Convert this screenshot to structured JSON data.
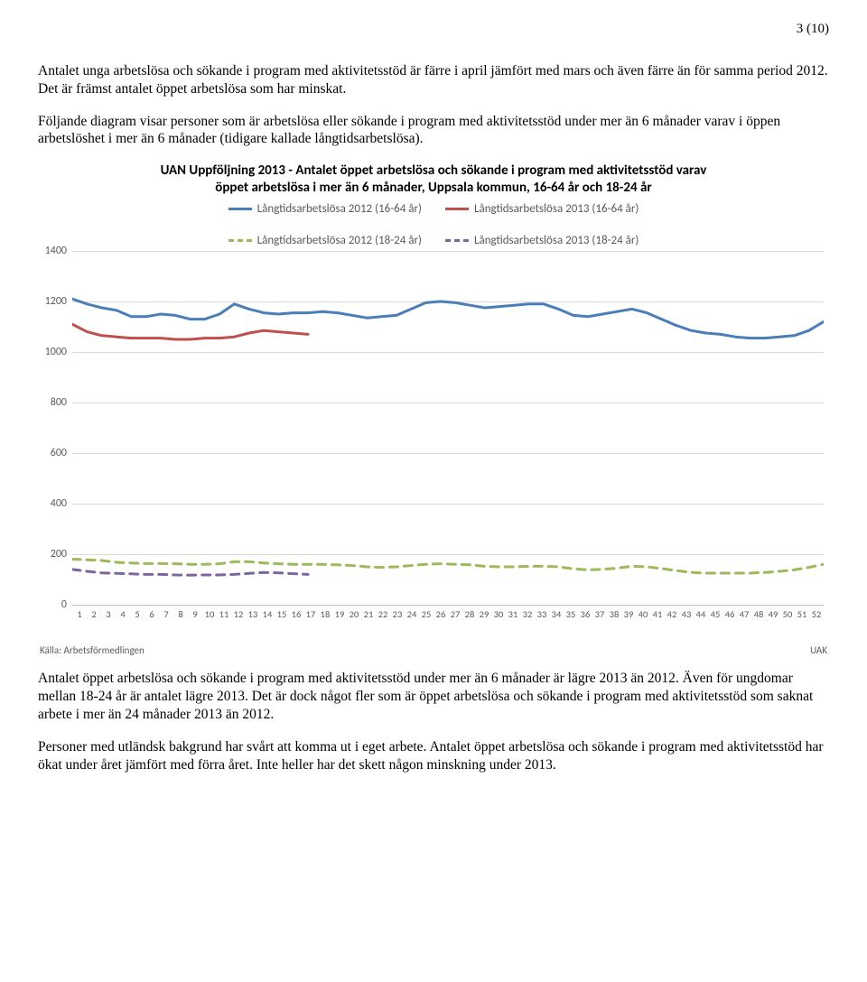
{
  "page_number": "3 (10)",
  "para1": "Antalet unga arbetslösa och sökande i program med aktivitetsstöd är färre i april jämfört med mars och även färre än för samma period 2012. Det är främst antalet öppet arbetslösa som har minskat.",
  "para2": "Följande diagram visar personer som är arbetslösa eller sökande i program med aktivitetsstöd under mer än 6 månader varav i öppen arbetslöshet i mer än 6 månader (tidigare kallade långtidsarbetslösa).",
  "para3": "Antalet öppet arbetslösa och sökande i program med aktivitetsstöd under mer än 6 månader är lägre 2013 än 2012. Även för ungdomar mellan 18-24 år är antalet lägre 2013. Det är dock något fler som är öppet arbetslösa och sökande i program med aktivitetsstöd som saknat arbete i mer än 24 månader 2013 än 2012.",
  "para4": "Personer med utländsk bakgrund har svårt att komma ut i eget arbete. Antalet öppet arbetslösa och sökande i program med aktivitetsstöd har ökat under året jämfört med förra året. Inte heller har det skett någon minskning under 2013.",
  "chart": {
    "title_line1": "UAN Uppföljning 2013 - Antalet öppet arbetslösa och sökande i program med aktivitetsstöd varav",
    "title_line2": "öppet arbetslösa i mer än 6 månader, Uppsala kommun, 16-64 år och 18-24 år",
    "legend": [
      {
        "label": "Långtidsarbetslösa 2012 (16-64 år)",
        "color": "#4a7ebb",
        "dashed": false
      },
      {
        "label": "Långtidsarbetslösa 2013 (16-64 år)",
        "color": "#c0504d",
        "dashed": false
      },
      {
        "label": "Långtidsarbetslösa 2012 (18-24 år)",
        "color": "#9bbb59",
        "dashed": true
      },
      {
        "label": "Långtidsarbetslösa 2013 (18-24 år)",
        "color": "#8064a2",
        "dashed": true
      }
    ],
    "ylim": [
      0,
      1400
    ],
    "ytick_step": 200,
    "yticks": [
      0,
      200,
      400,
      600,
      800,
      1000,
      1200,
      1400
    ],
    "x_count": 52,
    "grid_color": "#d9d9d9",
    "axis_color": "#bfbfbf",
    "background_color": "#ffffff",
    "line_width": 3,
    "tick_font_color": "#595959",
    "series": {
      "blue_2012_1664": {
        "color": "#4a7ebb",
        "dashed": false,
        "values": [
          1210,
          1190,
          1175,
          1165,
          1140,
          1140,
          1150,
          1145,
          1130,
          1130,
          1150,
          1190,
          1170,
          1155,
          1150,
          1155,
          1155,
          1160,
          1155,
          1145,
          1135,
          1140,
          1145,
          1170,
          1195,
          1200,
          1195,
          1185,
          1175,
          1180,
          1185,
          1190,
          1190,
          1170,
          1145,
          1140,
          1150,
          1160,
          1170,
          1155,
          1130,
          1105,
          1085,
          1075,
          1070,
          1060,
          1055,
          1055,
          1060,
          1065,
          1085,
          1120
        ]
      },
      "red_2013_1664": {
        "color": "#c0504d",
        "dashed": false,
        "values": [
          1110,
          1080,
          1065,
          1060,
          1055,
          1055,
          1055,
          1050,
          1050,
          1055,
          1055,
          1060,
          1075,
          1085,
          1080,
          1075,
          1070
        ]
      },
      "green_2012_1824": {
        "color": "#9bbb59",
        "dashed": true,
        "values": [
          180,
          178,
          175,
          168,
          165,
          163,
          163,
          162,
          160,
          160,
          162,
          170,
          170,
          165,
          162,
          160,
          160,
          160,
          158,
          155,
          150,
          148,
          150,
          155,
          160,
          162,
          160,
          158,
          152,
          150,
          150,
          152,
          152,
          150,
          142,
          138,
          140,
          145,
          152,
          150,
          143,
          135,
          128,
          125,
          125,
          125,
          125,
          128,
          132,
          138,
          148,
          160
        ]
      },
      "purple_2013_1824": {
        "color": "#8064a2",
        "dashed": true,
        "values": [
          140,
          132,
          126,
          124,
          122,
          120,
          120,
          118,
          117,
          118,
          118,
          120,
          124,
          128,
          126,
          123,
          120
        ]
      }
    },
    "source_left": "Källa: Arbetsförmedlingen",
    "source_right": "UAK"
  }
}
